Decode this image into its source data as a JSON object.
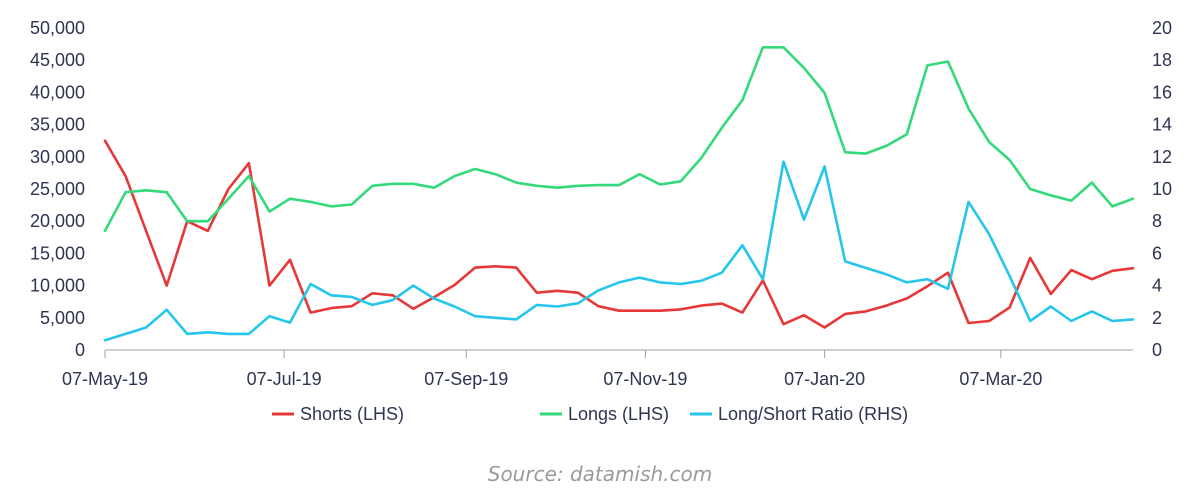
{
  "chart_data": {
    "type": "line",
    "title": "",
    "x_ticks": [
      "07-May-19",
      "07-Jul-19",
      "07-Sep-19",
      "07-Nov-19",
      "07-Jan-20",
      "07-Mar-20"
    ],
    "x_range": [
      "2019-05-07",
      "2020-04-21"
    ],
    "y_left": {
      "ticks": [
        "0",
        "5,000",
        "10,000",
        "15,000",
        "20,000",
        "25,000",
        "30,000",
        "35,000",
        "40,000",
        "45,000",
        "50,000"
      ],
      "range": [
        0,
        50000
      ]
    },
    "y_right": {
      "ticks": [
        "0",
        "2",
        "4",
        "6",
        "8",
        "10",
        "12",
        "14",
        "16",
        "18",
        "20"
      ],
      "range": [
        0,
        20
      ]
    },
    "grid": false,
    "legend_position": "bottom",
    "series": [
      {
        "name": "Shorts (LHS)",
        "axis": "left",
        "color": "#e63838",
        "x": [
          "2019-05-07",
          "2019-05-14",
          "2019-05-21",
          "2019-05-28",
          "2019-06-04",
          "2019-06-11",
          "2019-06-18",
          "2019-06-25",
          "2019-07-02",
          "2019-07-09",
          "2019-07-16",
          "2019-07-23",
          "2019-07-30",
          "2019-08-06",
          "2019-08-13",
          "2019-08-20",
          "2019-08-27",
          "2019-09-03",
          "2019-09-10",
          "2019-09-17",
          "2019-09-24",
          "2019-10-01",
          "2019-10-08",
          "2019-10-15",
          "2019-10-22",
          "2019-10-29",
          "2019-11-05",
          "2019-11-12",
          "2019-11-19",
          "2019-11-26",
          "2019-12-03",
          "2019-12-10",
          "2019-12-17",
          "2019-12-24",
          "2019-12-31",
          "2020-01-07",
          "2020-01-14",
          "2020-01-21",
          "2020-01-28",
          "2020-02-04",
          "2020-02-11",
          "2020-02-18",
          "2020-02-25",
          "2020-03-03",
          "2020-03-10",
          "2020-03-17",
          "2020-03-24",
          "2020-03-31",
          "2020-04-07",
          "2020-04-14",
          "2020-04-21"
        ],
        "values": [
          32500,
          27000,
          18500,
          10000,
          20000,
          18500,
          25000,
          29000,
          10000,
          14000,
          5800,
          6500,
          6800,
          8800,
          8500,
          6400,
          8200,
          10100,
          12800,
          13000,
          12800,
          8900,
          9200,
          8900,
          6800,
          6100,
          6100,
          6100,
          6300,
          6900,
          7200,
          5800,
          10800,
          4000,
          5400,
          3500,
          5600,
          6000,
          6900,
          8000,
          9900,
          12000,
          4200,
          4500,
          6600,
          14300,
          8700,
          12400,
          11000,
          12300,
          12700
        ]
      },
      {
        "name": "Longs (LHS)",
        "axis": "left",
        "color": "#33d97a",
        "x": [
          "2019-05-07",
          "2019-05-14",
          "2019-05-21",
          "2019-05-28",
          "2019-06-04",
          "2019-06-11",
          "2019-06-18",
          "2019-06-25",
          "2019-07-02",
          "2019-07-09",
          "2019-07-16",
          "2019-07-23",
          "2019-07-30",
          "2019-08-06",
          "2019-08-13",
          "2019-08-20",
          "2019-08-27",
          "2019-09-03",
          "2019-09-10",
          "2019-09-17",
          "2019-09-24",
          "2019-10-01",
          "2019-10-08",
          "2019-10-15",
          "2019-10-22",
          "2019-10-29",
          "2019-11-05",
          "2019-11-12",
          "2019-11-19",
          "2019-11-26",
          "2019-12-03",
          "2019-12-10",
          "2019-12-17",
          "2019-12-24",
          "2019-12-31",
          "2020-01-07",
          "2020-01-14",
          "2020-01-21",
          "2020-01-28",
          "2020-02-04",
          "2020-02-11",
          "2020-02-18",
          "2020-02-25",
          "2020-03-03",
          "2020-03-10",
          "2020-03-17",
          "2020-03-24",
          "2020-03-31",
          "2020-04-07",
          "2020-04-14",
          "2020-04-21"
        ],
        "values": [
          18500,
          24500,
          24800,
          24500,
          20000,
          20000,
          23500,
          27000,
          21500,
          23500,
          23000,
          22300,
          22600,
          25500,
          25800,
          25800,
          25200,
          27000,
          28100,
          27300,
          26000,
          25500,
          25200,
          25500,
          25600,
          25600,
          27300,
          25700,
          26200,
          29800,
          34500,
          38800,
          47000,
          47000,
          43800,
          39900,
          30700,
          30500,
          31700,
          33500,
          44200,
          44800,
          37500,
          32300,
          29500,
          25000,
          24000,
          23200,
          26000,
          22300,
          23500
        ]
      },
      {
        "name": "Long/Short Ratio (RHS)",
        "axis": "right",
        "color": "#26c6ec",
        "x": [
          "2019-05-07",
          "2019-05-14",
          "2019-05-21",
          "2019-05-28",
          "2019-06-04",
          "2019-06-11",
          "2019-06-18",
          "2019-06-25",
          "2019-07-02",
          "2019-07-09",
          "2019-07-16",
          "2019-07-23",
          "2019-07-30",
          "2019-08-06",
          "2019-08-13",
          "2019-08-20",
          "2019-08-27",
          "2019-09-03",
          "2019-09-10",
          "2019-09-17",
          "2019-09-24",
          "2019-10-01",
          "2019-10-08",
          "2019-10-15",
          "2019-10-22",
          "2019-10-29",
          "2019-11-05",
          "2019-11-12",
          "2019-11-19",
          "2019-11-26",
          "2019-12-03",
          "2019-12-10",
          "2019-12-17",
          "2019-12-24",
          "2019-12-31",
          "2020-01-07",
          "2020-01-14",
          "2020-01-21",
          "2020-01-28",
          "2020-02-04",
          "2020-02-11",
          "2020-02-18",
          "2020-02-25",
          "2020-03-03",
          "2020-03-10",
          "2020-03-17",
          "2020-03-24",
          "2020-03-31",
          "2020-04-07",
          "2020-04-14",
          "2020-04-21"
        ],
        "values": [
          0.6,
          1.0,
          1.4,
          2.5,
          1.0,
          1.1,
          1.0,
          1.0,
          2.1,
          1.7,
          4.1,
          3.4,
          3.3,
          2.8,
          3.1,
          4.0,
          3.2,
          2.7,
          2.1,
          2.0,
          1.9,
          2.8,
          2.7,
          2.9,
          3.7,
          4.2,
          4.5,
          4.2,
          4.1,
          4.3,
          4.8,
          6.5,
          4.4,
          11.7,
          8.1,
          11.4,
          5.5,
          5.1,
          4.7,
          4.2,
          4.4,
          3.8,
          9.2,
          7.2,
          4.6,
          1.8,
          2.7,
          1.8,
          2.4,
          1.8,
          1.9
        ]
      }
    ]
  },
  "legend": [
    {
      "label": "Shorts (LHS)",
      "color": "#e63838"
    },
    {
      "label": "Longs (LHS)",
      "color": "#33d97a"
    },
    {
      "label": "Long/Short Ratio (RHS)",
      "color": "#26c6ec"
    }
  ],
  "source": "Source: datamish.com"
}
